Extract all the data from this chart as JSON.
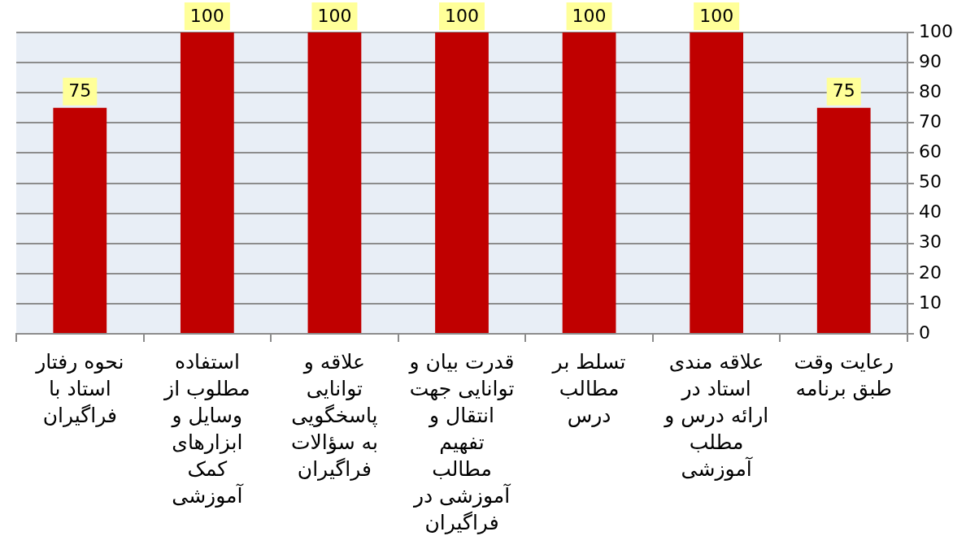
{
  "chart_data": {
    "type": "bar",
    "categories": [
      "نحوه رفتار استاد با فراگیران",
      "استفاده مطلوب از وسایل و ابزارهای کمک آموزشی",
      "علاقه و توانایی پاسخگویی به سؤالات فراگیران",
      "قدرت بیان و توانایی جهت انتقال و تفهیم مطالب آموزشی در فراگیران",
      "تسلط بر مطالب درس",
      "علاقه مندی استاد در ارائه درس و مطلب آموزشی",
      "رعایت وقت طبق برنامه"
    ],
    "values": [
      75,
      100,
      100,
      100,
      100,
      100,
      75
    ],
    "color": "#c00000",
    "ylim": [
      0,
      100
    ],
    "yticks": [
      0,
      10,
      20,
      30,
      40,
      50,
      60,
      70,
      80,
      90,
      100
    ],
    "grid": "y",
    "data_labels": true
  }
}
